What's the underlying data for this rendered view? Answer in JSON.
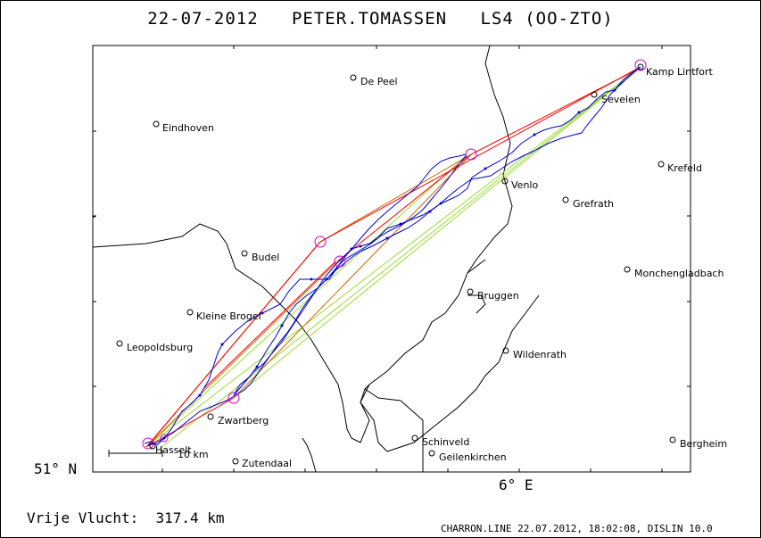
{
  "header": {
    "date": "22-07-2012",
    "pilot": "PETER.TOMASSEN",
    "glider": "LS4 (OO-ZTO)"
  },
  "axis": {
    "lat_label": "51° N",
    "lon_label": "6° E"
  },
  "scale_bar": {
    "label": "10 km"
  },
  "distance": {
    "label": "Vrije Vlucht:",
    "value": "317.4 km"
  },
  "footer": "CHARRON.LINE 22.07.2012, 18:02:08, DISLIN 10.0",
  "places": [
    "De Peel",
    "Kamp Lintfort",
    "Sevelen",
    "Eindhoven",
    "Krefeld",
    "Venlo",
    "Grefrath",
    "Budel",
    "Monchengladbach",
    "Bruggen",
    "Kleine Brogel",
    "Leopoldsburg",
    "Wildenrath",
    "Zwartberg",
    "Schinveld",
    "Hasselt",
    "Geilenkirchen",
    "Bergheim",
    "Zutendaal"
  ],
  "colors": {
    "track": "#0000cc",
    "task_red": "#ff0000",
    "task_orange": "#cc6600",
    "task_green": "#99dd33",
    "turnpoint": "#cc00cc",
    "border": "#000000"
  }
}
